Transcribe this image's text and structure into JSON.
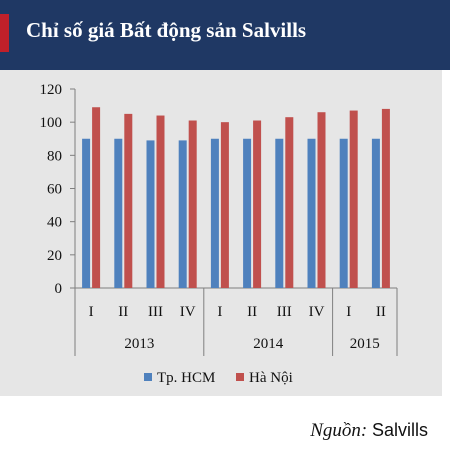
{
  "header": {
    "title": "Chỉ số giá Bất động sản Salvills"
  },
  "source": {
    "label": "Nguồn:",
    "value": "Salvills"
  },
  "colors": {
    "header_bg": "#1f3864",
    "accent": "#c0202a",
    "panel_bg": "#e6e6e6",
    "hcm": "#4f81bd",
    "hanoi": "#c0504d"
  },
  "chart_data": {
    "type": "bar",
    "categories": [
      "I",
      "II",
      "III",
      "IV",
      "I",
      "II",
      "III",
      "IV",
      "I",
      "II"
    ],
    "groups": [
      {
        "label": "2013",
        "start": 0,
        "count": 4
      },
      {
        "label": "2014",
        "start": 4,
        "count": 4
      },
      {
        "label": "2015",
        "start": 8,
        "count": 2
      }
    ],
    "series": [
      {
        "name": "Tp. HCM",
        "color": "#4f81bd",
        "values": [
          90,
          90,
          89,
          89,
          90,
          90,
          90,
          90,
          90,
          90
        ]
      },
      {
        "name": "Hà Nội",
        "color": "#c0504d",
        "values": [
          109,
          105,
          104,
          101,
          100,
          101,
          103,
          106,
          107,
          108
        ]
      }
    ],
    "yticks": [
      0,
      20,
      40,
      60,
      80,
      100,
      120
    ],
    "ylim": [
      0,
      120
    ],
    "grid": false,
    "legend_position": "bottom"
  }
}
